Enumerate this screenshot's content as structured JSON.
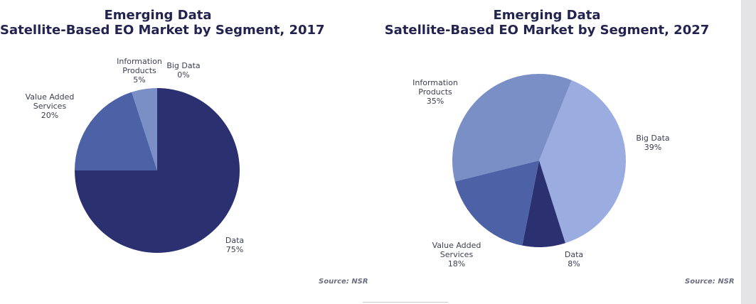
{
  "chart_data": [
    {
      "type": "pie",
      "title_line1": "Emerging Data",
      "title_line2": "Satellite-Based EO Market by Segment, 2017",
      "source": "Source: NSR",
      "slices": [
        {
          "name_lines": [
            "Data"
          ],
          "value": 75,
          "value_label": "75%",
          "color": "#2b3170"
        },
        {
          "name_lines": [
            "Value Added",
            "Services"
          ],
          "value": 20,
          "value_label": "20%",
          "color": "#4c61a6"
        },
        {
          "name_lines": [
            "Information",
            "Products"
          ],
          "value": 5,
          "value_label": "5%",
          "color": "#7a8fc6"
        },
        {
          "name_lines": [
            "Big Data"
          ],
          "value": 0,
          "value_label": "0%",
          "color": "#9aace0"
        }
      ]
    },
    {
      "type": "pie",
      "title_line1": "Emerging Data",
      "title_line2": "Satellite-Based EO Market by Segment, 2027",
      "source": "Source: NSR",
      "slices": [
        {
          "name_lines": [
            "Big Data"
          ],
          "value": 39,
          "value_label": "39%",
          "color": "#9aace0"
        },
        {
          "name_lines": [
            "Data"
          ],
          "value": 8,
          "value_label": "8%",
          "color": "#2b3170"
        },
        {
          "name_lines": [
            "Value Added",
            "Services"
          ],
          "value": 18,
          "value_label": "18%",
          "color": "#4c61a6"
        },
        {
          "name_lines": [
            "Information",
            "Products"
          ],
          "value": 35,
          "value_label": "35%",
          "color": "#7a8fc6"
        }
      ]
    }
  ]
}
